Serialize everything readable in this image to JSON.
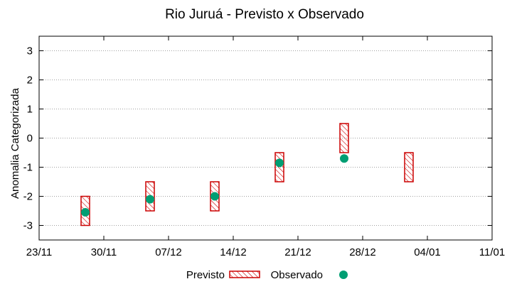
{
  "chart_data": {
    "type": "range-and-point",
    "title": "Rio Juruá - Previsto x Observado",
    "ylabel": "Anomalia Categorizada",
    "xlabel": "",
    "x_ticks": [
      "23/11",
      "30/11",
      "07/12",
      "14/12",
      "21/12",
      "28/12",
      "04/01",
      "11/01"
    ],
    "y_ticks": [
      "3",
      "2",
      "1",
      "0",
      "-1",
      "-2",
      "-3"
    ],
    "ylim": [
      -3.5,
      3.5
    ],
    "grid": "horizontal dotted",
    "legend_position": "bottom",
    "series": [
      {
        "name": "Previsto",
        "style": "hatched box",
        "color": "#cc0000",
        "ranges": [
          [
            -3,
            -2
          ],
          [
            -2.5,
            -1.5
          ],
          [
            -2.5,
            -1.5
          ],
          [
            -1.5,
            -0.5
          ],
          [
            -0.5,
            0.5
          ],
          [
            -1.5,
            -0.5
          ]
        ]
      },
      {
        "name": "Observado",
        "style": "point",
        "color": "#009e73",
        "values": [
          -2.55,
          -2.1,
          -2.0,
          -0.85,
          -0.7,
          null
        ]
      }
    ],
    "categories": [
      "28/11",
      "05/12",
      "12/12",
      "19/12",
      "26/12",
      "02/01"
    ]
  }
}
